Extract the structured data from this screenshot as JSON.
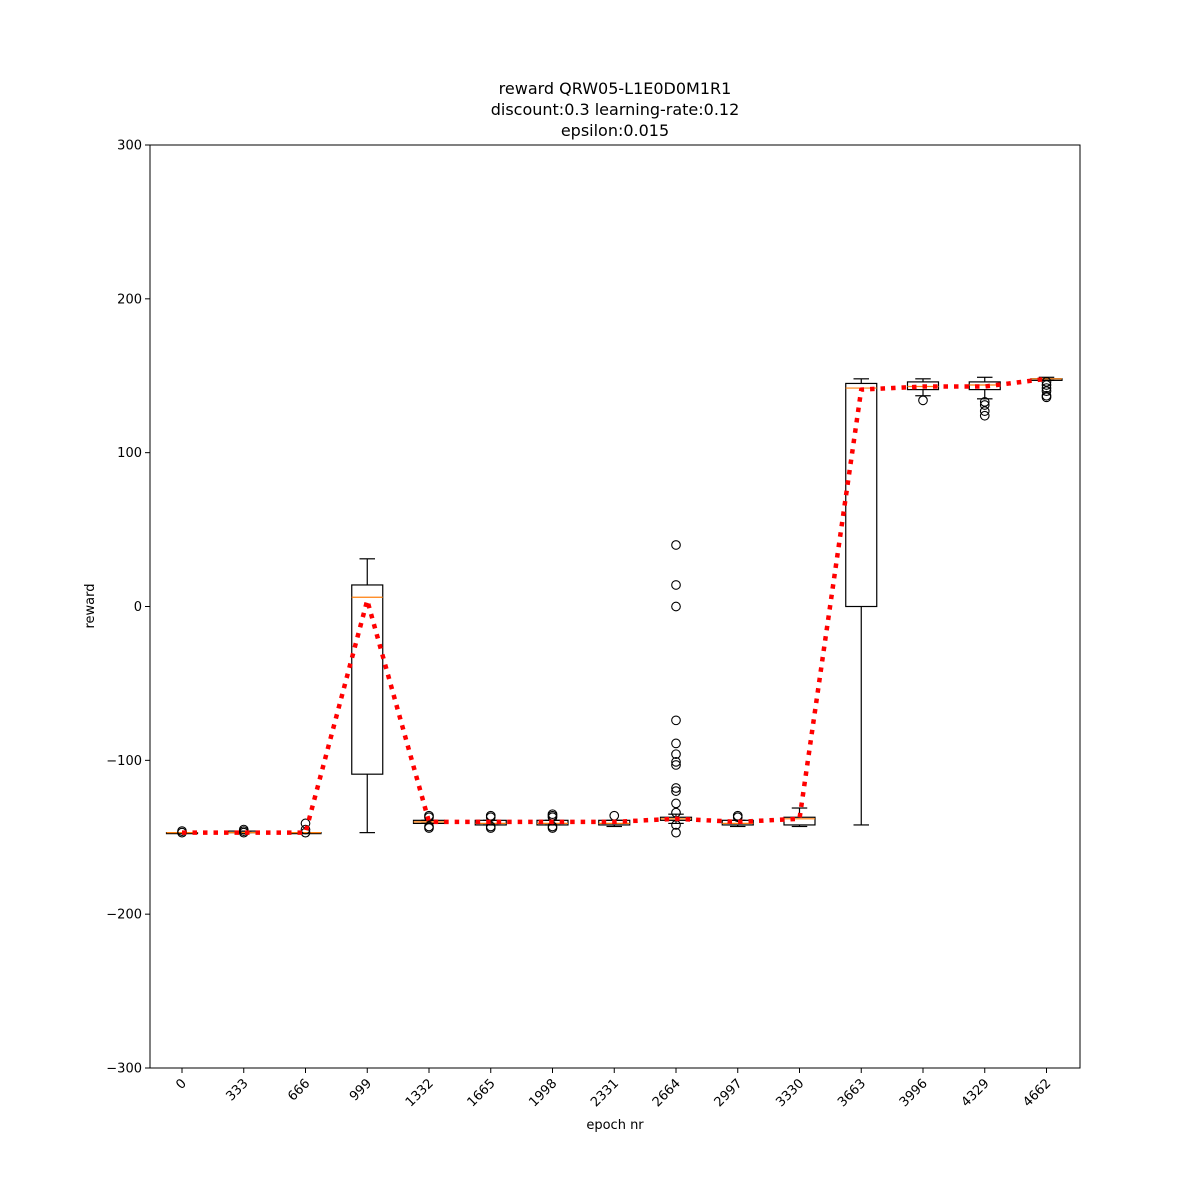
{
  "chart_data": {
    "type": "box",
    "title_lines": [
      "reward QRW05-L1E0D0M1R1",
      "discount:0.3 learning-rate:0.12",
      "epsilon:0.015"
    ],
    "xlabel": "epoch nr",
    "ylabel": "reward",
    "ylim": [
      -300,
      300
    ],
    "yticks": [
      -300,
      -200,
      -100,
      0,
      100,
      200,
      300
    ],
    "ytick_labels": [
      "−300",
      "−200",
      "−100",
      "0",
      "100",
      "200",
      "300"
    ],
    "categories": [
      "0",
      "333",
      "666",
      "999",
      "1332",
      "1665",
      "1998",
      "2331",
      "2664",
      "2997",
      "3330",
      "3663",
      "3996",
      "4329",
      "4662"
    ],
    "boxes": [
      {
        "q1": -147,
        "median": -147,
        "q3": -147,
        "whislo": -147,
        "whishi": -147,
        "fliers": [
          -146,
          -147
        ]
      },
      {
        "q1": -147,
        "median": -147,
        "q3": -146,
        "whislo": -147,
        "whishi": -146,
        "fliers": [
          -145,
          -146,
          -147
        ]
      },
      {
        "q1": -147,
        "median": -147,
        "q3": -147,
        "whislo": -147,
        "whishi": -147,
        "fliers": [
          -141,
          -145,
          -147
        ]
      },
      {
        "q1": -109,
        "median": 6,
        "q3": 14,
        "whislo": -147,
        "whishi": 31,
        "fliers": []
      },
      {
        "q1": -141,
        "median": -140,
        "q3": -139,
        "whislo": -141,
        "whishi": -139,
        "fliers": [
          -136,
          -137,
          -143,
          -144
        ]
      },
      {
        "q1": -142,
        "median": -141,
        "q3": -139,
        "whislo": -142,
        "whishi": -139,
        "fliers": [
          -136,
          -137,
          -143,
          -144
        ]
      },
      {
        "q1": -142,
        "median": -141,
        "q3": -139,
        "whislo": -142,
        "whishi": -139,
        "fliers": [
          -135,
          -136,
          -137,
          -143,
          -144
        ]
      },
      {
        "q1": -142,
        "median": -141,
        "q3": -139,
        "whislo": -143,
        "whishi": -139,
        "fliers": [
          -136
        ]
      },
      {
        "q1": -139,
        "median": -138,
        "q3": -137,
        "whislo": -141,
        "whishi": -135,
        "fliers": [
          40,
          14,
          0,
          -74,
          -89,
          -96,
          -101,
          -103,
          -118,
          -120,
          -128,
          -134,
          -142,
          -147
        ]
      },
      {
        "q1": -142,
        "median": -141,
        "q3": -139,
        "whislo": -143,
        "whishi": -139,
        "fliers": [
          -136,
          -137
        ]
      },
      {
        "q1": -142,
        "median": -138,
        "q3": -137,
        "whislo": -143,
        "whishi": -131,
        "fliers": []
      },
      {
        "q1": 0,
        "median": 142,
        "q3": 145,
        "whislo": -142,
        "whishi": 148,
        "fliers": []
      },
      {
        "q1": 141,
        "median": 143,
        "q3": 146,
        "whislo": 137,
        "whishi": 148,
        "fliers": [
          134
        ]
      },
      {
        "q1": 141,
        "median": 144,
        "q3": 146,
        "whislo": 135,
        "whishi": 149,
        "fliers": [
          133,
          131,
          127,
          124
        ]
      },
      {
        "q1": 147,
        "median": 148,
        "q3": 148,
        "whislo": 147,
        "whishi": 149,
        "fliers": [
          146,
          144,
          142,
          140,
          137,
          136
        ]
      }
    ],
    "mean_line": {
      "values": [
        -147,
        -147,
        -147,
        4,
        -140,
        -140,
        -140,
        -140,
        -138,
        -140,
        -138,
        141,
        143,
        143,
        148
      ],
      "color": "#ff0000",
      "style": "dotted"
    },
    "colors": {
      "box": "#000000",
      "median": "#ff7f0e",
      "mean": "#ff0000"
    }
  }
}
